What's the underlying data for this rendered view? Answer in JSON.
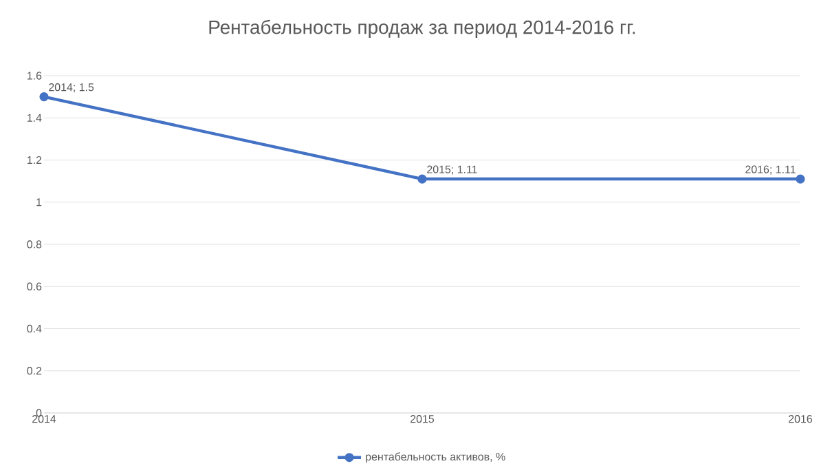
{
  "chart_data": {
    "type": "line",
    "title": "Рентабельность продаж за период 2014-2016 гг.",
    "x": [
      2014,
      2015,
      2016
    ],
    "series": [
      {
        "name": "рентабельность активов, %",
        "color": "#4472c4",
        "values": [
          1.5,
          1.11,
          1.11
        ]
      }
    ],
    "value_labels": [
      "2014; 1.5",
      "2015; 1.11",
      "2016; 1.11"
    ],
    "xlim": [
      2014,
      2016
    ],
    "xticks": [
      2014,
      2015,
      2016
    ],
    "ylim": [
      0,
      1.6
    ],
    "yticks": [
      0,
      0.2,
      0.4,
      0.6,
      0.8,
      1,
      1.2,
      1.4,
      1.6
    ],
    "grid": "y",
    "legend": "bottom",
    "marker": "circle",
    "line_style": "solid"
  }
}
